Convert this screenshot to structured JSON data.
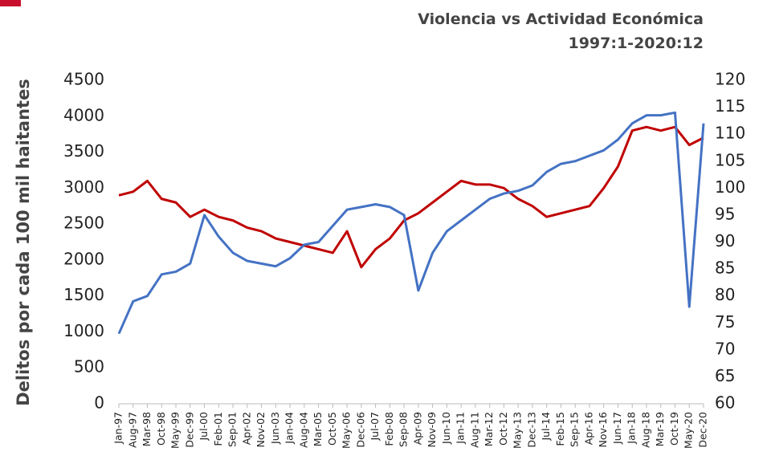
{
  "chart_data": {
    "type": "line",
    "title": "Violencia vs Actividad Económica",
    "subtitle": "1997:1-2020:12",
    "y_label": "Delitos por cada 100 mil haitantes",
    "categories": [
      "Jan-97",
      "Aug-97",
      "Mar-98",
      "Oct-98",
      "May-99",
      "Dec-99",
      "Jul-00",
      "Feb-01",
      "Sep-01",
      "Apr-02",
      "Nov-02",
      "Jun-03",
      "Jan-04",
      "Aug-04",
      "Mar-05",
      "Oct-05",
      "May-06",
      "Dec-06",
      "Jul-07",
      "Feb-08",
      "Sep-08",
      "Apr-09",
      "Nov-09",
      "Jun-10",
      "Jan-11",
      "Aug-11",
      "Mar-12",
      "Oct-12",
      "May-13",
      "Dec-13",
      "Jul-14",
      "Feb-15",
      "Sep-15",
      "Apr-16",
      "Nov-16",
      "Jun-17",
      "Jan-18",
      "Aug-18",
      "Mar-19",
      "Oct-19",
      "May-20",
      "Dec-20"
    ],
    "series": [
      {
        "color": "#c00000",
        "values": [
          2900,
          2950,
          3100,
          2850,
          2800,
          2600,
          2700,
          2600,
          2550,
          2450,
          2400,
          2300,
          2250,
          2200,
          2150,
          2100,
          2400,
          1900,
          2150,
          2300,
          2550,
          2650,
          2800,
          2950,
          3100,
          3050,
          3050,
          3000,
          2850,
          2750,
          2600,
          2650,
          2700,
          2750,
          3000,
          3300,
          3800,
          3850,
          3800,
          3850,
          3600,
          3700
        ]
      },
      {
        "color": "#4472c4",
        "axis": "y2",
        "values": [
          73,
          79,
          80,
          84,
          84.5,
          86,
          95,
          91,
          88,
          86.5,
          86,
          85.5,
          87,
          89.5,
          90,
          93,
          96,
          96.5,
          97,
          96.5,
          95,
          81,
          88,
          92,
          94,
          96,
          98,
          99,
          99.5,
          100.5,
          103,
          104.5,
          105,
          106,
          107,
          109,
          112,
          113.5,
          113.5,
          114,
          78,
          112
        ]
      }
    ],
    "ylim": [
      0,
      4500
    ],
    "yticks": [
      0,
      500,
      1000,
      1500,
      2000,
      2500,
      3000,
      3500,
      4000,
      4500
    ],
    "y2lim": [
      60,
      120
    ],
    "y2ticks": [
      60,
      65,
      70,
      75,
      80,
      85,
      90,
      95,
      100,
      105,
      110,
      115,
      120
    ],
    "grid": false
  }
}
